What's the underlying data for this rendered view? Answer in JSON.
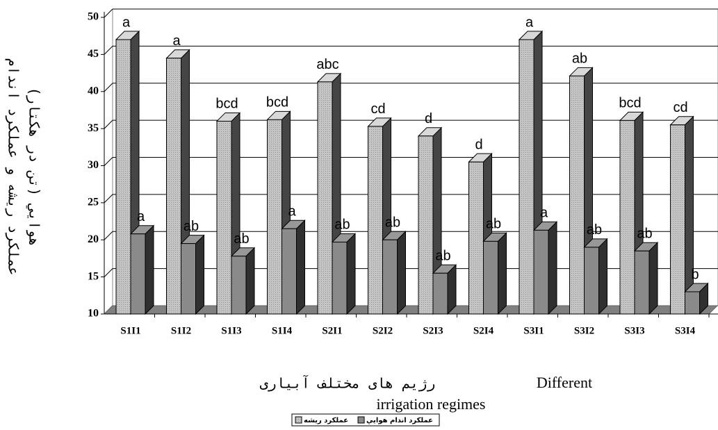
{
  "chart_data": {
    "type": "bar3d",
    "ylabel": [
      "عملكرد ريشه و عملكرد اندام",
      "هوايي (تن در هكتار)"
    ],
    "xlabel": "رژيم هاى مختلف آبيارى",
    "xlabel_en": [
      "Different",
      "irrigation regimes"
    ],
    "categories": [
      "S1I1",
      "S1I2",
      "S1I3",
      "S1I4",
      "S2I1",
      "S2I2",
      "S2I3",
      "S2I4",
      "S3I1",
      "S3I2",
      "S3I3",
      "S3I4"
    ],
    "series": [
      {
        "name": "عملكرد ريشه",
        "color": "#c4c4c4",
        "values": [
          47,
          44.5,
          36,
          36.2,
          41.3,
          35.3,
          34,
          30.5,
          47,
          42.1,
          36.1,
          35.5
        ],
        "significance_letters": [
          "a",
          "a",
          "bcd",
          "bcd",
          "abc",
          "cd",
          "d",
          "d",
          "a",
          "ab",
          "bcd",
          "cd"
        ]
      },
      {
        "name": "عملكرد اندام هوايي",
        "color": "#8a8a8a",
        "values": [
          20.8,
          19.5,
          17.8,
          21.5,
          19.7,
          20,
          15.5,
          19.8,
          21.3,
          19,
          18.5,
          13
        ],
        "significance_letters": [
          "a",
          "ab",
          "ab",
          "a",
          "ab",
          "ab",
          "ab",
          "ab",
          "a",
          "ab",
          "ab",
          "b"
        ]
      }
    ],
    "ylim": [
      10,
      50
    ],
    "yticks": [
      10,
      15,
      20,
      25,
      30,
      35,
      40,
      45,
      50
    ],
    "grid": true
  }
}
